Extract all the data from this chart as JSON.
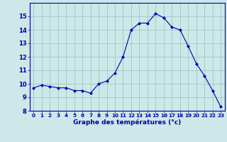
{
  "hours": [
    0,
    1,
    2,
    3,
    4,
    5,
    6,
    7,
    8,
    9,
    10,
    11,
    12,
    13,
    14,
    15,
    16,
    17,
    18,
    19,
    20,
    21,
    22,
    23
  ],
  "temps": [
    9.7,
    9.9,
    9.8,
    9.7,
    9.7,
    9.5,
    9.5,
    9.3,
    10.0,
    10.2,
    10.8,
    12.0,
    14.0,
    14.5,
    14.5,
    15.2,
    14.9,
    14.2,
    14.0,
    12.8,
    11.5,
    10.6,
    9.5,
    8.3
  ],
  "xlabel": "Graphe des températures (°c)",
  "line_color": "#0000aa",
  "marker_color": "#0000bb",
  "bg_color": "#cce8e8",
  "plot_bg_color": "#cce8e8",
  "grid_color": "#9dbdbd",
  "ylim": [
    8,
    16
  ],
  "yticks": [
    8,
    9,
    10,
    11,
    12,
    13,
    14,
    15
  ],
  "xticks": [
    0,
    1,
    2,
    3,
    4,
    5,
    6,
    7,
    8,
    9,
    10,
    11,
    12,
    13,
    14,
    15,
    16,
    17,
    18,
    19,
    20,
    21,
    22,
    23
  ],
  "xlabel_color": "#0000aa",
  "tick_color": "#0000aa",
  "axis_color": "#0000aa",
  "tick_fontsize": 5.2,
  "xlabel_fontsize": 6.5,
  "ytick_fontsize": 6.0
}
